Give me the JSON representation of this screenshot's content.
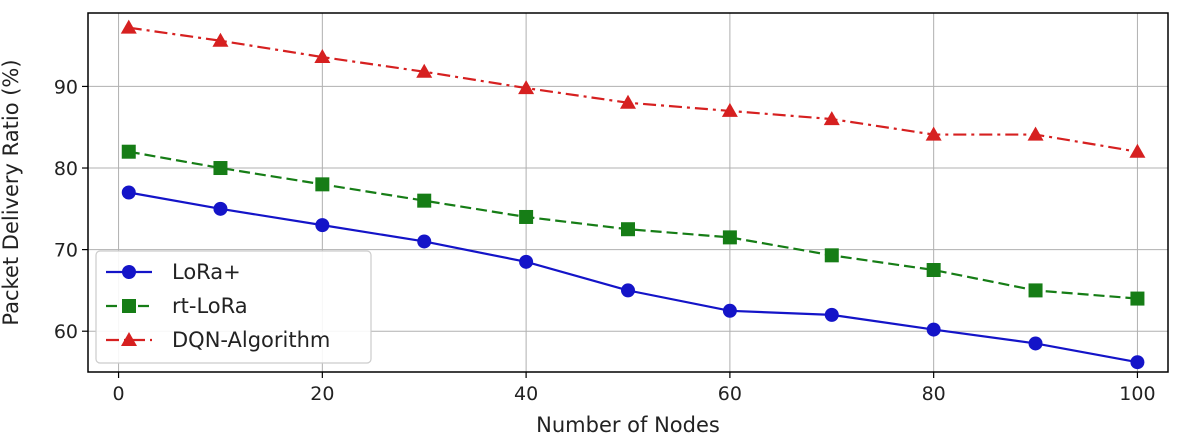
{
  "chart_data": {
    "type": "line",
    "title": "",
    "xlabel": "Number of Nodes",
    "ylabel": "Packet Delivery Ratio (%)",
    "xlim": [
      -3,
      103
    ],
    "ylim": [
      55,
      99
    ],
    "xticks": [
      0,
      20,
      40,
      60,
      80,
      100
    ],
    "yticks": [
      60,
      70,
      80,
      90
    ],
    "grid": true,
    "legend_position": "lower-left",
    "x": [
      1,
      10,
      20,
      30,
      40,
      50,
      60,
      70,
      80,
      90,
      100
    ],
    "series": [
      {
        "name": "LoRa+",
        "color": "#1414c8",
        "line_style": "solid",
        "marker": "circle",
        "values": [
          77,
          75,
          73,
          71,
          68.5,
          65,
          62.5,
          62,
          60.2,
          58.5,
          56.2
        ]
      },
      {
        "name": "rt-LoRa",
        "color": "#167d16",
        "line_style": "dashed",
        "marker": "square",
        "values": [
          82,
          80,
          78,
          76,
          74,
          72.5,
          71.5,
          69.3,
          67.5,
          65,
          64
        ]
      },
      {
        "name": "DQN-Algorithm",
        "color": "#d62020",
        "line_style": "dashdot",
        "marker": "triangle",
        "values": [
          97.2,
          95.6,
          93.6,
          91.8,
          89.8,
          88,
          87,
          86,
          84.1,
          84.1,
          82
        ]
      }
    ]
  }
}
